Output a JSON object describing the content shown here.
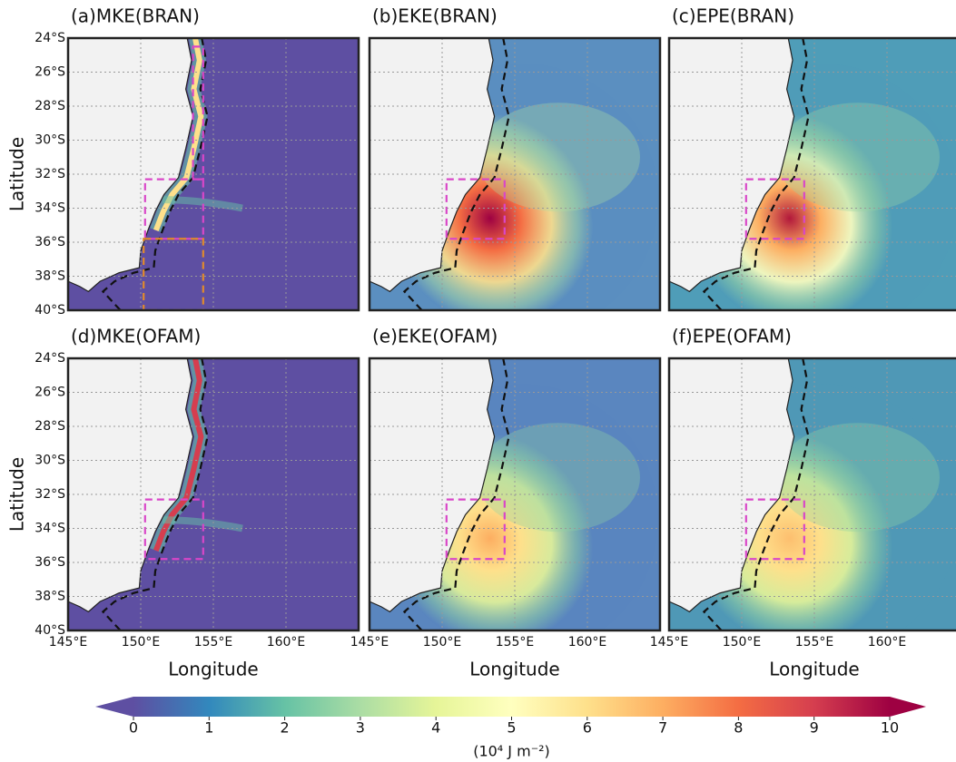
{
  "chart_data": [
    {
      "type": "map",
      "title": "(a)MKE(BRAN)",
      "ylabel": "Latitude",
      "xlim": [
        145,
        165
      ],
      "ylim": [
        -40,
        -24
      ],
      "xticks": [
        145,
        150,
        155,
        160,
        165
      ],
      "yticks": [
        {
          "value": -24,
          "label": "24°S"
        },
        {
          "value": -26,
          "label": "26°S"
        },
        {
          "value": -28,
          "label": "28°S"
        },
        {
          "value": -30,
          "label": "30°S"
        },
        {
          "value": -32,
          "label": "32°S"
        },
        {
          "value": -34,
          "label": "34°S"
        },
        {
          "value": -36,
          "label": "36°S"
        },
        {
          "value": -38,
          "label": "38°S"
        },
        {
          "value": -40,
          "label": "40°S"
        }
      ]
    },
    {
      "type": "map",
      "title": "(b)EKE(BRAN)",
      "xlim": [
        145,
        165
      ],
      "ylim": [
        -40,
        -24
      ],
      "xticks": [
        145,
        150,
        155,
        160,
        165
      ],
      "yticks": [
        -24,
        -26,
        -28,
        -30,
        -32,
        -34,
        -36,
        -38,
        -40
      ]
    },
    {
      "type": "map",
      "title": "(c)EPE(BRAN)",
      "xlim": [
        145,
        165
      ],
      "ylim": [
        -40,
        -24
      ],
      "xticks": [
        145,
        150,
        155,
        160,
        165
      ],
      "yticks": [
        -24,
        -26,
        -28,
        -30,
        -32,
        -34,
        -36,
        -38,
        -40
      ]
    },
    {
      "type": "map",
      "title": "(d)MKE(OFAM)",
      "ylabel": "Latitude",
      "xlabel": "Longitude",
      "xlim": [
        145,
        165
      ],
      "ylim": [
        -40,
        -24
      ],
      "xticks": [
        {
          "value": 145,
          "label": "145°E"
        },
        {
          "value": 150,
          "label": "150°E"
        },
        {
          "value": 155,
          "label": "155°E"
        },
        {
          "value": 160,
          "label": "160°E"
        }
      ],
      "yticks": [
        {
          "value": -24,
          "label": "24°S"
        },
        {
          "value": -26,
          "label": "26°S"
        },
        {
          "value": -28,
          "label": "28°S"
        },
        {
          "value": -30,
          "label": "30°S"
        },
        {
          "value": -32,
          "label": "32°S"
        },
        {
          "value": -34,
          "label": "34°S"
        },
        {
          "value": -36,
          "label": "36°S"
        },
        {
          "value": -38,
          "label": "38°S"
        },
        {
          "value": -40,
          "label": "40°S"
        }
      ]
    },
    {
      "type": "map",
      "title": "(e)EKE(OFAM)",
      "xlabel": "Longitude",
      "xlim": [
        145,
        165
      ],
      "ylim": [
        -40,
        -24
      ],
      "xticks": [
        {
          "value": 145,
          "label": "145°E"
        },
        {
          "value": 150,
          "label": "150°E"
        },
        {
          "value": 155,
          "label": "155°E"
        },
        {
          "value": 160,
          "label": "160°E"
        }
      ],
      "yticks": [
        -24,
        -26,
        -28,
        -30,
        -32,
        -34,
        -36,
        -38,
        -40
      ]
    },
    {
      "type": "map",
      "title": "(f)EPE(OFAM)",
      "xlabel": "Longitude",
      "xlim": [
        145,
        165
      ],
      "ylim": [
        -40,
        -24
      ],
      "xticks": [
        {
          "value": 145,
          "label": "145°E"
        },
        {
          "value": 150,
          "label": "150°E"
        },
        {
          "value": 155,
          "label": "155°E"
        },
        {
          "value": 160,
          "label": "160°E"
        }
      ],
      "yticks": [
        -24,
        -26,
        -28,
        -30,
        -32,
        -34,
        -36,
        -38,
        -40
      ]
    },
    {
      "type": "colorbar",
      "label": "(10⁴ J m⁻²)",
      "xlim": [
        0,
        10
      ],
      "xticks": [
        0,
        1,
        2,
        3,
        4,
        5,
        6,
        7,
        8,
        9,
        10
      ]
    }
  ]
}
